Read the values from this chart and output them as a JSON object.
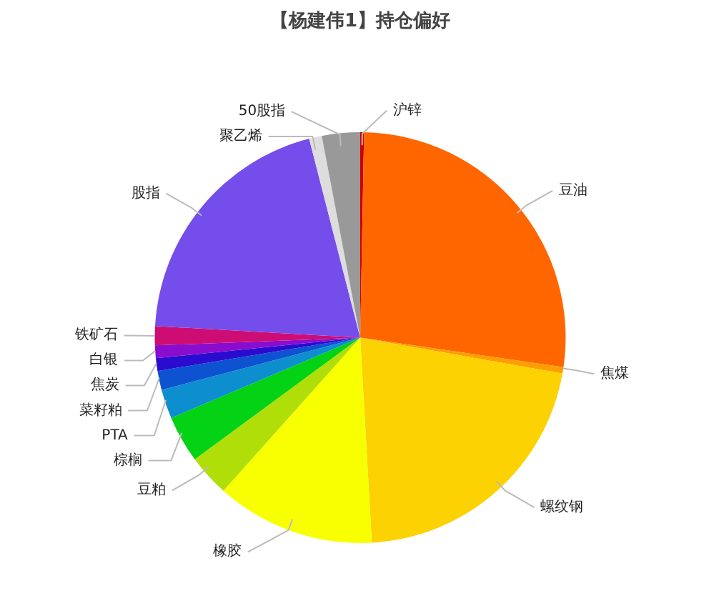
{
  "chart_data": {
    "type": "pie",
    "title": "【杨建伟1】持仓偏好",
    "categories": [
      "沪锌",
      "豆油",
      "焦煤",
      "螺纹钢",
      "橡胶",
      "豆粕",
      "棕榈",
      "PTA",
      "菜籽粕",
      "焦炭",
      "白银",
      "铁矿石",
      "股指",
      "聚乙烯",
      "50股指"
    ],
    "values": [
      0.3,
      27,
      0.5,
      21.3,
      12.5,
      3.3,
      3.7,
      2.3,
      1.5,
      1,
      1,
      1.5,
      20.1,
      1,
      3
    ],
    "colors": [
      "#cc0000",
      "#ff6600",
      "#ff9e01",
      "#fcd202",
      "#f8ff01",
      "#b0de09",
      "#04d215",
      "#0d8ecf",
      "#0d52d1",
      "#2a0cd0",
      "#8a0ccf",
      "#cd0d74",
      "#754deb",
      "#dddddd",
      "#999999"
    ]
  }
}
